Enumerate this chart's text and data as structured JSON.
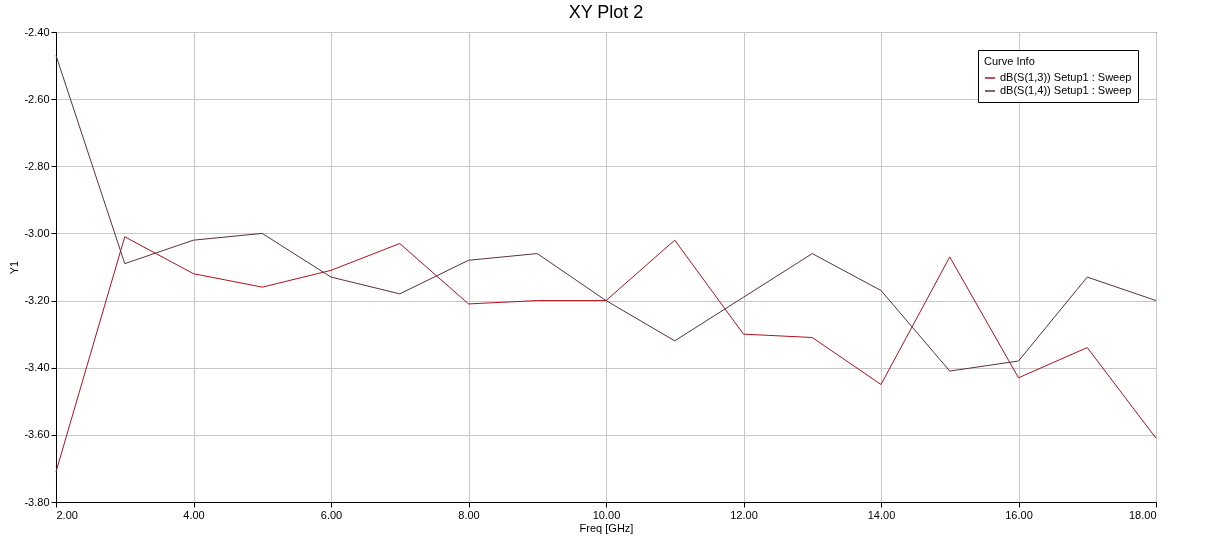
{
  "chart_data": {
    "type": "line",
    "title": "XY Plot 2",
    "xlabel": "Freq [GHz]",
    "ylabel": "Y1",
    "legend_title": "Curve Info",
    "legend": "top right",
    "grid": true,
    "line_style": "solid",
    "x": [
      2,
      3,
      4,
      5,
      6,
      7,
      8,
      9,
      10,
      11,
      12,
      13,
      14,
      15,
      16,
      17,
      18
    ],
    "xlim": [
      2,
      18
    ],
    "xticks": [
      {
        "value": 2,
        "label": "2.00"
      },
      {
        "value": 4,
        "label": "4.00"
      },
      {
        "value": 6,
        "label": "6.00"
      },
      {
        "value": 8,
        "label": "8.00"
      },
      {
        "value": 10,
        "label": "10.00"
      },
      {
        "value": 12,
        "label": "12.00"
      },
      {
        "value": 14,
        "label": "14.00"
      },
      {
        "value": 16,
        "label": "16.00"
      },
      {
        "value": 18,
        "label": "18.00"
      }
    ],
    "ylim": [
      -3.8,
      -2.4
    ],
    "yticks": [
      {
        "value": -3.8,
        "label": "-3.80"
      },
      {
        "value": -3.6,
        "label": "-3.60"
      },
      {
        "value": -3.4,
        "label": "-3.40"
      },
      {
        "value": -3.2,
        "label": "-3.20"
      },
      {
        "value": -3.0,
        "label": "-3.00"
      },
      {
        "value": -2.8,
        "label": "-2.80"
      },
      {
        "value": -2.6,
        "label": "-2.60"
      },
      {
        "value": -2.4,
        "label": "-2.40"
      }
    ],
    "series": [
      {
        "name": "dB(S(1,3)) Setup1 : Sweep",
        "color": "#b0101e",
        "values": [
          -3.71,
          -3.01,
          -3.12,
          -3.16,
          -3.11,
          -3.03,
          -3.21,
          -3.2,
          -3.2,
          -3.02,
          -3.3,
          -3.31,
          -3.45,
          -3.07,
          -3.43,
          -3.34,
          -3.61
        ]
      },
      {
        "name": "dB(S(1,4)) Setup1 : Sweep",
        "color": "#5a3040",
        "values": [
          -2.47,
          -3.09,
          -3.02,
          -3.0,
          -3.13,
          -3.18,
          -3.08,
          -3.06,
          -3.2,
          -3.32,
          -3.19,
          -3.06,
          -3.17,
          -3.41,
          -3.38,
          -3.13,
          -3.2
        ]
      }
    ]
  }
}
